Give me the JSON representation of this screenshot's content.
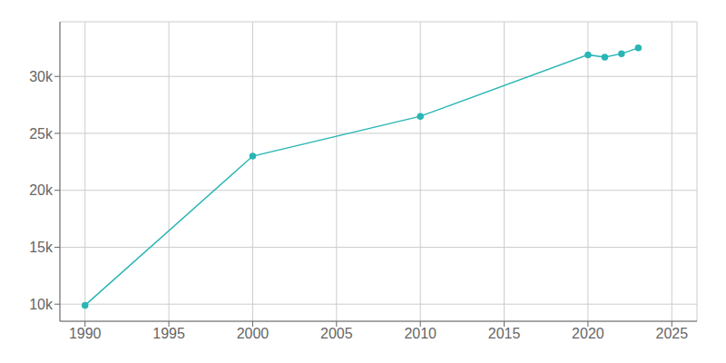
{
  "chart_data": {
    "type": "line",
    "x": [
      1990,
      2000,
      2010,
      2020,
      2021,
      2022,
      2023
    ],
    "values": [
      9900,
      23000,
      26500,
      31900,
      31700,
      32000,
      32500
    ],
    "color": "#2ab5b5",
    "marker": "circle",
    "xlim": [
      1988.5,
      2026.5
    ],
    "ylim": [
      8500,
      34800
    ],
    "xticks": [
      1990,
      1995,
      2000,
      2005,
      2010,
      2015,
      2020,
      2025
    ],
    "yticks": [
      {
        "value": 10000,
        "label": "10k"
      },
      {
        "value": 15000,
        "label": "15k"
      },
      {
        "value": 20000,
        "label": "20k"
      },
      {
        "value": 25000,
        "label": "25k"
      },
      {
        "value": 30000,
        "label": "30k"
      }
    ],
    "grid": true
  }
}
